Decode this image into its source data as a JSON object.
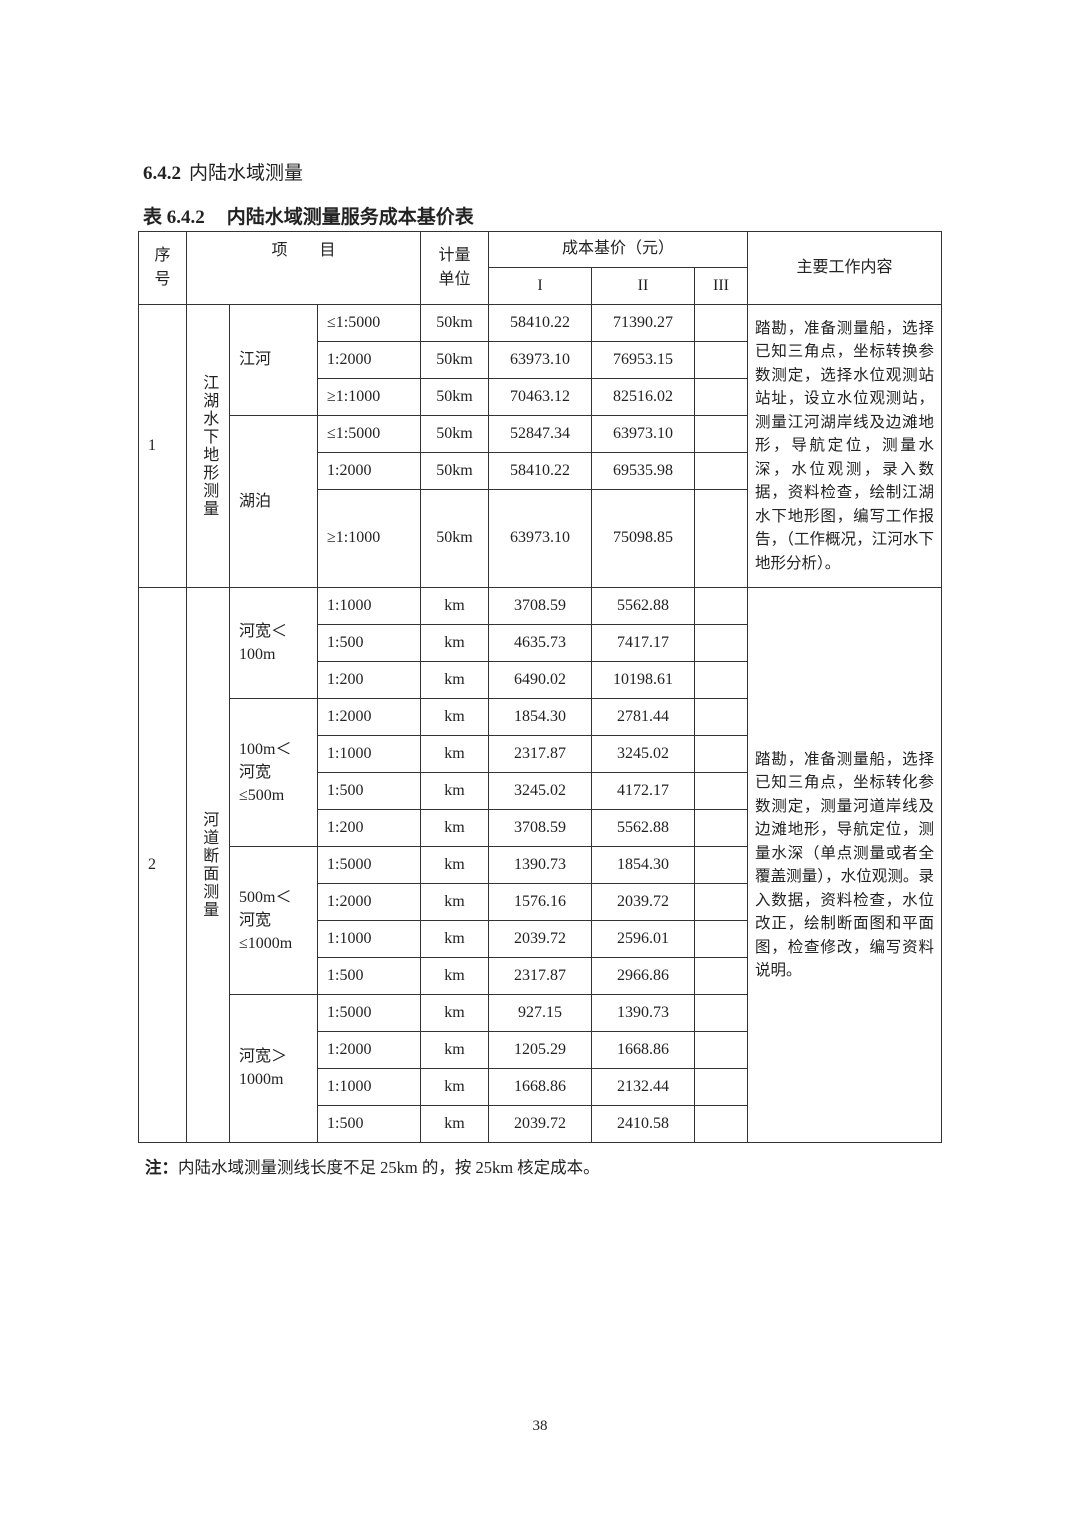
{
  "section": {
    "number": "6.4.2",
    "title": "内陆水域测量"
  },
  "table_title": {
    "number": "表 6.4.2",
    "title": "内陆水域测量服务成本基价表"
  },
  "headers": {
    "seq": "序号",
    "item": "项　　目",
    "unit": "计量单位",
    "price": "成本基价（元）",
    "grades": [
      "I",
      "II",
      "III"
    ],
    "content": "主要工作内容"
  },
  "sections": [
    {
      "seq": "1",
      "category": "江湖水下地形测量",
      "description": "踏勘，准备测量船，选择已知三角点，坐标转换参数测定，选择水位观测站站址，设立水位观测站，测量江河湖岸线及边滩地形，导航定位，测量水深，水位观测，录入数据，资料检查，绘制江湖水下地形图，编写工作报告，（工作概况，江河水下地形分析）。",
      "groups": [
        {
          "label": "江河",
          "rows": [
            {
              "scale": "≤1:5000",
              "unit": "50km",
              "I": "58410.22",
              "II": "71390.27",
              "III": ""
            },
            {
              "scale": "1:2000",
              "unit": "50km",
              "I": "63973.10",
              "II": "76953.15",
              "III": ""
            },
            {
              "scale": "≥1:1000",
              "unit": "50km",
              "I": "70463.12",
              "II": "82516.02",
              "III": ""
            }
          ]
        },
        {
          "label": "湖泊",
          "rows": [
            {
              "scale": "≤1:5000",
              "unit": "50km",
              "I": "52847.34",
              "II": "63973.10",
              "III": ""
            },
            {
              "scale": "1:2000",
              "unit": "50km",
              "I": "58410.22",
              "II": "69535.98",
              "III": ""
            },
            {
              "scale": "≥1:1000",
              "unit": "50km",
              "I": "63973.10",
              "II": "75098.85",
              "III": ""
            }
          ]
        }
      ]
    },
    {
      "seq": "2",
      "category": "河道断面测量",
      "description": "踏勘，准备测量船，选择已知三角点，坐标转化参数测定，测量河道岸线及边滩地形，导航定位，测量水深（单点测量或者全覆盖测量），水位观测。录入数据，资料检查，水位改正，绘制断面图和平面图，检查修改，编写资料说明。",
      "groups": [
        {
          "label": "河宽＜100m",
          "rows": [
            {
              "scale": "1:1000",
              "unit": "km",
              "I": "3708.59",
              "II": "5562.88",
              "III": ""
            },
            {
              "scale": "1:500",
              "unit": "km",
              "I": "4635.73",
              "II": "7417.17",
              "III": ""
            },
            {
              "scale": "1:200",
              "unit": "km",
              "I": "6490.02",
              "II": "10198.61",
              "III": ""
            }
          ]
        },
        {
          "label": "100m＜河宽≤500m",
          "rows": [
            {
              "scale": "1:2000",
              "unit": "km",
              "I": "1854.30",
              "II": "2781.44",
              "III": ""
            },
            {
              "scale": "1:1000",
              "unit": "km",
              "I": "2317.87",
              "II": "3245.02",
              "III": ""
            },
            {
              "scale": "1:500",
              "unit": "km",
              "I": "3245.02",
              "II": "4172.17",
              "III": ""
            },
            {
              "scale": "1:200",
              "unit": "km",
              "I": "3708.59",
              "II": "5562.88",
              "III": ""
            }
          ]
        },
        {
          "label": "500m＜河宽≤1000m",
          "rows": [
            {
              "scale": "1:5000",
              "unit": "km",
              "I": "1390.73",
              "II": "1854.30",
              "III": ""
            },
            {
              "scale": "1:2000",
              "unit": "km",
              "I": "1576.16",
              "II": "2039.72",
              "III": ""
            },
            {
              "scale": "1:1000",
              "unit": "km",
              "I": "2039.72",
              "II": "2596.01",
              "III": ""
            },
            {
              "scale": "1:500",
              "unit": "km",
              "I": "2317.87",
              "II": "2966.86",
              "III": ""
            }
          ]
        },
        {
          "label": "河宽＞1000m",
          "rows": [
            {
              "scale": "1:5000",
              "unit": "km",
              "I": "927.15",
              "II": "1390.73",
              "III": ""
            },
            {
              "scale": "1:2000",
              "unit": "km",
              "I": "1205.29",
              "II": "1668.86",
              "III": ""
            },
            {
              "scale": "1:1000",
              "unit": "km",
              "I": "1668.86",
              "II": "2132.44",
              "III": ""
            },
            {
              "scale": "1:500",
              "unit": "km",
              "I": "2039.72",
              "II": "2410.58",
              "III": ""
            }
          ]
        }
      ]
    }
  ],
  "note": {
    "label": "注：",
    "text": "内陆水域测量测线长度不足 25km 的，按 25km 核定成本。"
  },
  "page_number": "38"
}
